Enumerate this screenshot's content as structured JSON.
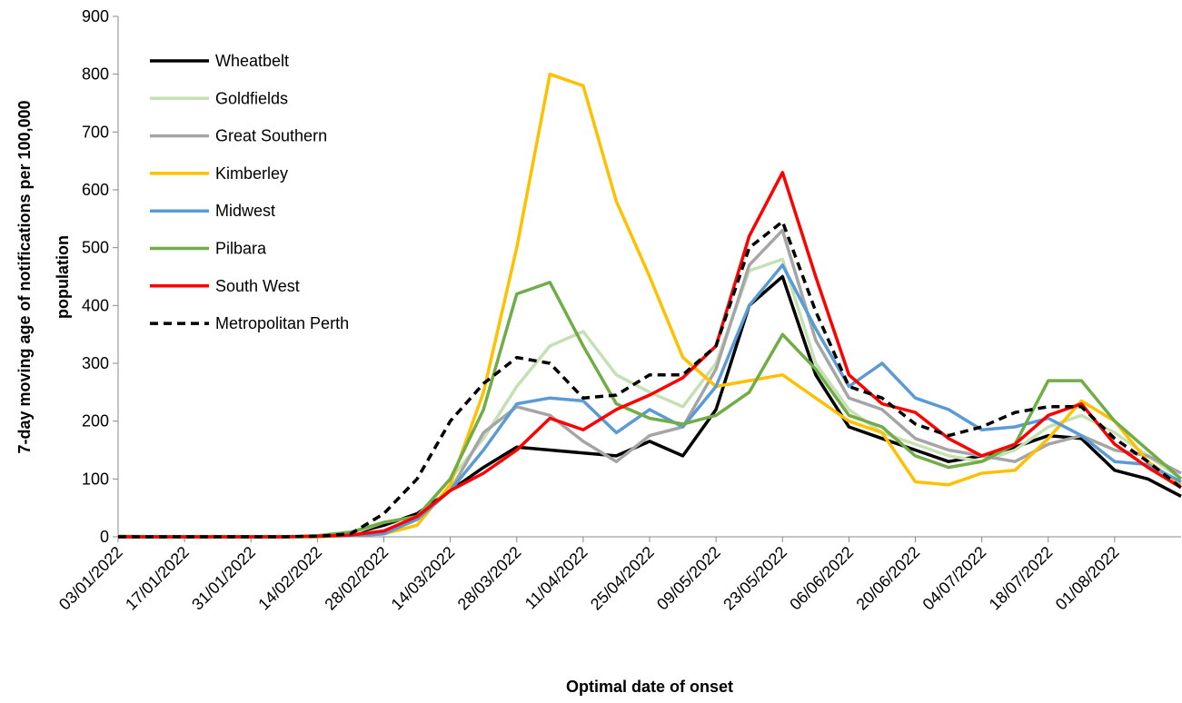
{
  "chart_data": {
    "type": "line",
    "xlabel": "Optimal date of onset",
    "ylabel": [
      "7-day moving age of notifications per 100,000",
      "population"
    ],
    "categories": [
      "03/01/2022",
      null,
      "17/01/2022",
      null,
      "31/01/2022",
      null,
      "14/02/2022",
      null,
      "28/02/2022",
      null,
      "14/03/2022",
      null,
      "28/03/2022",
      null,
      "11/04/2022",
      null,
      "25/04/2022",
      null,
      "09/05/2022",
      null,
      "23/05/2022",
      null,
      "06/06/2022",
      null,
      "20/06/2022",
      null,
      "04/07/2022",
      null,
      "18/07/2022",
      null,
      "01/08/2022",
      null,
      null
    ],
    "ylim": [
      0,
      900
    ],
    "yticks": [
      0,
      100,
      200,
      300,
      400,
      500,
      600,
      700,
      800,
      900
    ],
    "series": [
      {
        "name": "Wheatbelt",
        "color": "#000000",
        "style": "solid",
        "values": [
          0,
          0,
          0,
          0,
          0,
          0,
          1,
          5,
          20,
          40,
          80,
          120,
          155,
          150,
          145,
          140,
          165,
          140,
          220,
          400,
          450,
          280,
          190,
          170,
          150,
          130,
          140,
          155,
          175,
          170,
          115,
          100,
          70
        ]
      },
      {
        "name": "Goldfields",
        "color": "#c6e0b4",
        "style": "solid",
        "values": [
          2,
          0,
          0,
          0,
          0,
          0,
          1,
          5,
          25,
          35,
          100,
          170,
          260,
          330,
          355,
          280,
          250,
          225,
          300,
          460,
          480,
          300,
          220,
          180,
          160,
          140,
          130,
          150,
          190,
          210,
          180,
          140,
          100
        ]
      },
      {
        "name": "Great Southern",
        "color": "#a5a5a5",
        "style": "solid",
        "values": [
          0,
          0,
          0,
          0,
          0,
          0,
          1,
          3,
          10,
          30,
          80,
          180,
          225,
          210,
          165,
          130,
          175,
          190,
          290,
          470,
          530,
          340,
          240,
          220,
          170,
          150,
          140,
          130,
          160,
          175,
          150,
          140,
          110
        ]
      },
      {
        "name": "Kimberley",
        "color": "#ffc000",
        "style": "solid",
        "values": [
          0,
          0,
          0,
          0,
          0,
          0,
          0,
          2,
          5,
          20,
          90,
          250,
          500,
          800,
          780,
          580,
          450,
          310,
          260,
          270,
          280,
          240,
          200,
          180,
          95,
          90,
          110,
          115,
          170,
          235,
          200,
          130,
          90
        ]
      },
      {
        "name": "Midwest",
        "color": "#5b9bd5",
        "style": "solid",
        "values": [
          0,
          0,
          0,
          0,
          0,
          0,
          1,
          2,
          5,
          30,
          80,
          150,
          230,
          240,
          235,
          180,
          220,
          190,
          260,
          400,
          470,
          360,
          260,
          300,
          240,
          220,
          185,
          190,
          205,
          175,
          130,
          125,
          95
        ]
      },
      {
        "name": "Pilbara",
        "color": "#70ad47",
        "style": "solid",
        "values": [
          0,
          0,
          0,
          0,
          0,
          0,
          2,
          8,
          25,
          35,
          100,
          220,
          420,
          440,
          330,
          230,
          205,
          195,
          210,
          250,
          350,
          290,
          210,
          190,
          140,
          120,
          130,
          160,
          270,
          270,
          200,
          150,
          100
        ]
      },
      {
        "name": "South West",
        "color": "#ff0000",
        "style": "solid",
        "values": [
          0,
          0,
          0,
          0,
          0,
          0,
          1,
          3,
          10,
          35,
          80,
          110,
          150,
          205,
          185,
          220,
          245,
          275,
          330,
          520,
          630,
          450,
          280,
          230,
          215,
          170,
          140,
          160,
          210,
          230,
          160,
          120,
          85
        ]
      },
      {
        "name": "Metropolitan Perth",
        "color": "#000000",
        "style": "dashed",
        "values": [
          0,
          0,
          0,
          0,
          0,
          0,
          1,
          5,
          40,
          100,
          200,
          265,
          310,
          300,
          240,
          245,
          280,
          280,
          330,
          500,
          545,
          390,
          260,
          240,
          195,
          175,
          190,
          215,
          225,
          225,
          170,
          130,
          85
        ]
      }
    ]
  }
}
